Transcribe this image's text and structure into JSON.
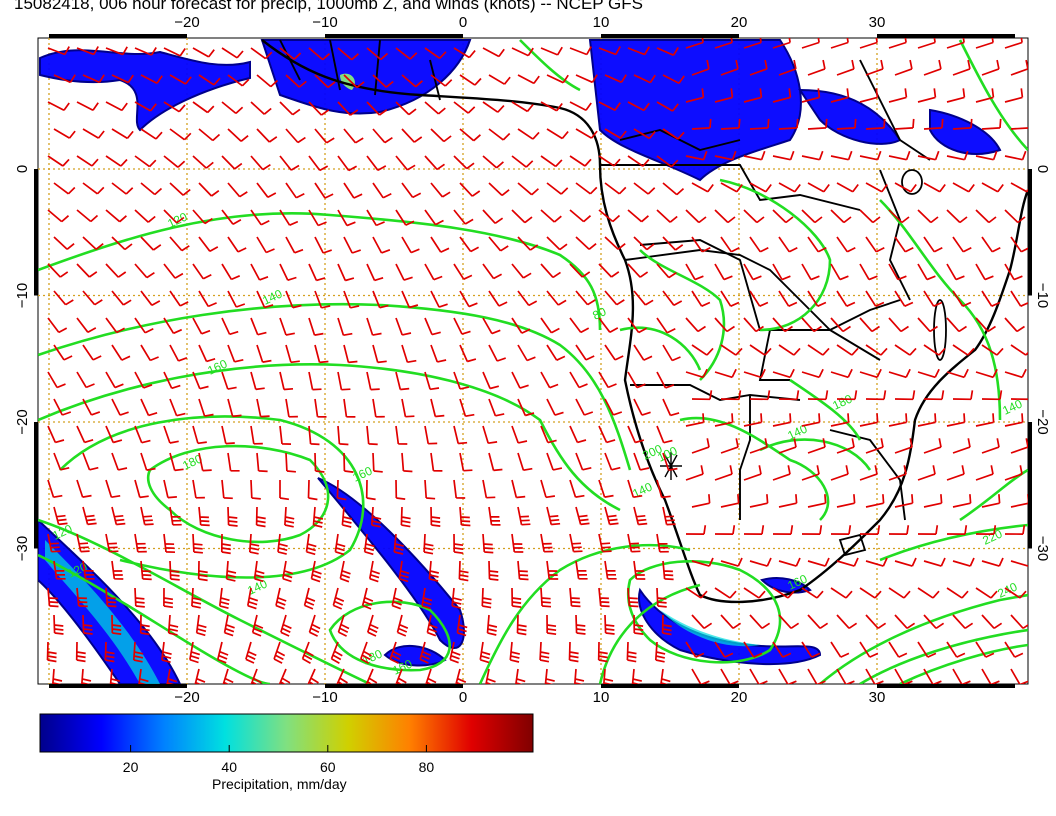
{
  "title": "15082418, 006 hour forecast for precip, 1000mb Z, and winds (knots) -- NCEP GFS",
  "map": {
    "lon_ticks_top": [
      "−20",
      "−10",
      "0",
      "10",
      "20",
      "30"
    ],
    "lon_ticks_bottom": [
      "−20",
      "−10",
      "0",
      "10",
      "20",
      "30"
    ],
    "lat_ticks_left": [
      "0",
      "−10",
      "−20",
      "−30"
    ],
    "lat_ticks_right": [
      "0",
      "−10",
      "−20",
      "−30"
    ],
    "colors": {
      "wind_barbs": "#e00000",
      "height_contours": "#22dd22",
      "coastlines": "#000000",
      "grid": "#d4a020"
    },
    "contour_labels": [
      "120",
      "140",
      "160",
      "180",
      "160",
      "140",
      "120",
      "180",
      "160",
      "140",
      "120",
      "100",
      "80",
      "220",
      "240",
      "200",
      "160",
      "140",
      "180",
      "140"
    ]
  },
  "colorbar": {
    "label": "Precipitation, mm/day",
    "ticks": [
      "20",
      "40",
      "60",
      "80"
    ],
    "colormap": [
      "#00008b",
      "#0000ff",
      "#0080ff",
      "#00e0e0",
      "#80e080",
      "#d0d000",
      "#ff8000",
      "#e00000",
      "#800000"
    ]
  }
}
